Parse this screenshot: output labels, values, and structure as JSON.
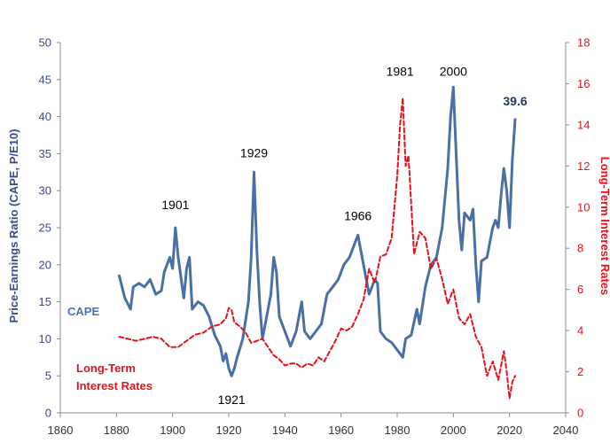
{
  "chart_data": {
    "type": "line",
    "xlim": [
      1860,
      2040
    ],
    "x_ticks": [
      "1860",
      "1880",
      "1900",
      "1920",
      "1940",
      "1960",
      "1980",
      "2000",
      "2020",
      "2040"
    ],
    "y_left": {
      "label": "Price-Earnings Ratio (CAPE, P/E10)",
      "lim": [
        0,
        50
      ],
      "ticks": [
        "0",
        "5",
        "10",
        "15",
        "20",
        "25",
        "30",
        "35",
        "40",
        "45",
        "50"
      ]
    },
    "y_right": {
      "label": "Long-Term Interest Rates",
      "lim": [
        0,
        18
      ],
      "ticks": [
        "0",
        "2",
        "4",
        "6",
        "8",
        "10",
        "12",
        "14",
        "16",
        "18"
      ]
    },
    "series": [
      {
        "name": "CAPE",
        "axis": "left",
        "color": "#4a6fa5",
        "style": "solid",
        "x": [
          1881,
          1883,
          1885,
          1886,
          1888,
          1890,
          1892,
          1894,
          1896,
          1897,
          1899,
          1900,
          1901,
          1902,
          1904,
          1905,
          1906,
          1907,
          1909,
          1911,
          1913,
          1915,
          1917,
          1918,
          1919,
          1920,
          1921,
          1922,
          1923,
          1925,
          1927,
          1928,
          1929,
          1930,
          1931,
          1932,
          1933,
          1934,
          1935,
          1936,
          1937,
          1938,
          1940,
          1942,
          1944,
          1946,
          1947,
          1949,
          1951,
          1953,
          1955,
          1957,
          1959,
          1961,
          1963,
          1965,
          1966,
          1968,
          1970,
          1972,
          1973,
          1974,
          1976,
          1978,
          1980,
          1982,
          1983,
          1985,
          1987,
          1988,
          1990,
          1992,
          1994,
          1996,
          1998,
          1999,
          2000,
          2001,
          2002,
          2003,
          2004,
          2006,
          2007,
          2008,
          2009,
          2010,
          2012,
          2014,
          2015,
          2016,
          2017,
          2018,
          2019,
          2020,
          2021,
          2022
        ],
        "y": [
          18.5,
          15.5,
          14,
          17,
          17.5,
          17,
          18,
          16,
          16.5,
          19,
          21,
          19.5,
          25,
          21,
          15.5,
          19.5,
          21,
          14,
          15,
          14.5,
          13,
          10.5,
          9,
          7,
          8,
          6,
          5,
          6,
          7.5,
          10,
          15,
          21,
          32.5,
          22,
          15,
          10,
          12,
          14,
          16,
          21,
          19,
          13,
          11,
          9,
          11,
          15,
          11,
          10,
          11,
          12,
          16,
          17,
          18,
          20,
          21,
          23,
          24,
          20,
          16,
          18,
          17.5,
          11,
          10,
          9.5,
          8.5,
          7.5,
          10,
          10.5,
          14,
          12,
          17,
          20,
          21,
          25,
          33,
          40,
          44,
          35,
          26,
          22,
          27,
          26,
          27.5,
          20,
          15,
          20.5,
          21,
          25,
          26,
          25,
          29.5,
          33,
          30,
          25,
          34,
          39.6
        ]
      },
      {
        "name": "Long-Term Interest Rates",
        "axis": "right",
        "color": "#e3121b",
        "style": "dashed",
        "x": [
          1881,
          1884,
          1887,
          1890,
          1893,
          1896,
          1899,
          1902,
          1905,
          1908,
          1911,
          1914,
          1917,
          1919,
          1920,
          1921,
          1922,
          1924,
          1926,
          1928,
          1930,
          1932,
          1934,
          1936,
          1938,
          1940,
          1942,
          1944,
          1946,
          1948,
          1950,
          1952,
          1954,
          1956,
          1958,
          1960,
          1962,
          1964,
          1966,
          1968,
          1970,
          1972,
          1974,
          1976,
          1978,
          1980,
          1981,
          1982,
          1983,
          1984,
          1986,
          1988,
          1990,
          1992,
          1994,
          1996,
          1998,
          2000,
          2002,
          2004,
          2006,
          2008,
          2010,
          2012,
          2014,
          2016,
          2018,
          2019,
          2020,
          2021,
          2022
        ],
        "y": [
          3.7,
          3.6,
          3.5,
          3.6,
          3.7,
          3.6,
          3.2,
          3.2,
          3.5,
          3.8,
          3.9,
          4.2,
          4.3,
          4.6,
          5.1,
          5.0,
          4.4,
          4.2,
          3.9,
          3.4,
          3.5,
          3.6,
          3.2,
          2.8,
          2.6,
          2.3,
          2.4,
          2.4,
          2.2,
          2.4,
          2.3,
          2.7,
          2.5,
          3.0,
          3.5,
          4.1,
          4.0,
          4.2,
          4.8,
          5.5,
          7.0,
          6.3,
          7.6,
          7.7,
          8.5,
          11.5,
          14.0,
          15.3,
          12.0,
          12.5,
          7.7,
          8.8,
          8.5,
          7.0,
          7.5,
          6.5,
          5.3,
          6.0,
          4.6,
          4.3,
          4.8,
          3.7,
          3.2,
          1.8,
          2.5,
          1.6,
          3.0,
          2.0,
          0.7,
          1.5,
          1.8
        ]
      }
    ],
    "peak_labels": [
      {
        "text": "1901",
        "x": 1901,
        "y": 27.5
      },
      {
        "text": "1921",
        "x": 1921,
        "y": 1.2
      },
      {
        "text": "1929",
        "x": 1929,
        "y": 34.5
      },
      {
        "text": "1966",
        "x": 1966,
        "y": 26.0
      },
      {
        "text": "1981",
        "x": 1981,
        "y": 45.5
      },
      {
        "text": "2000",
        "x": 2000,
        "y": 45.5
      }
    ],
    "last_value_label": {
      "text": "39.6",
      "x": 2022,
      "y": 41.5
    },
    "legend": [
      {
        "text": "CAPE",
        "color": "#4472c4"
      },
      {
        "text": "Long-Term",
        "color": "#e3121b"
      },
      {
        "text": "Interest Rates",
        "color": "#e3121b"
      }
    ]
  }
}
